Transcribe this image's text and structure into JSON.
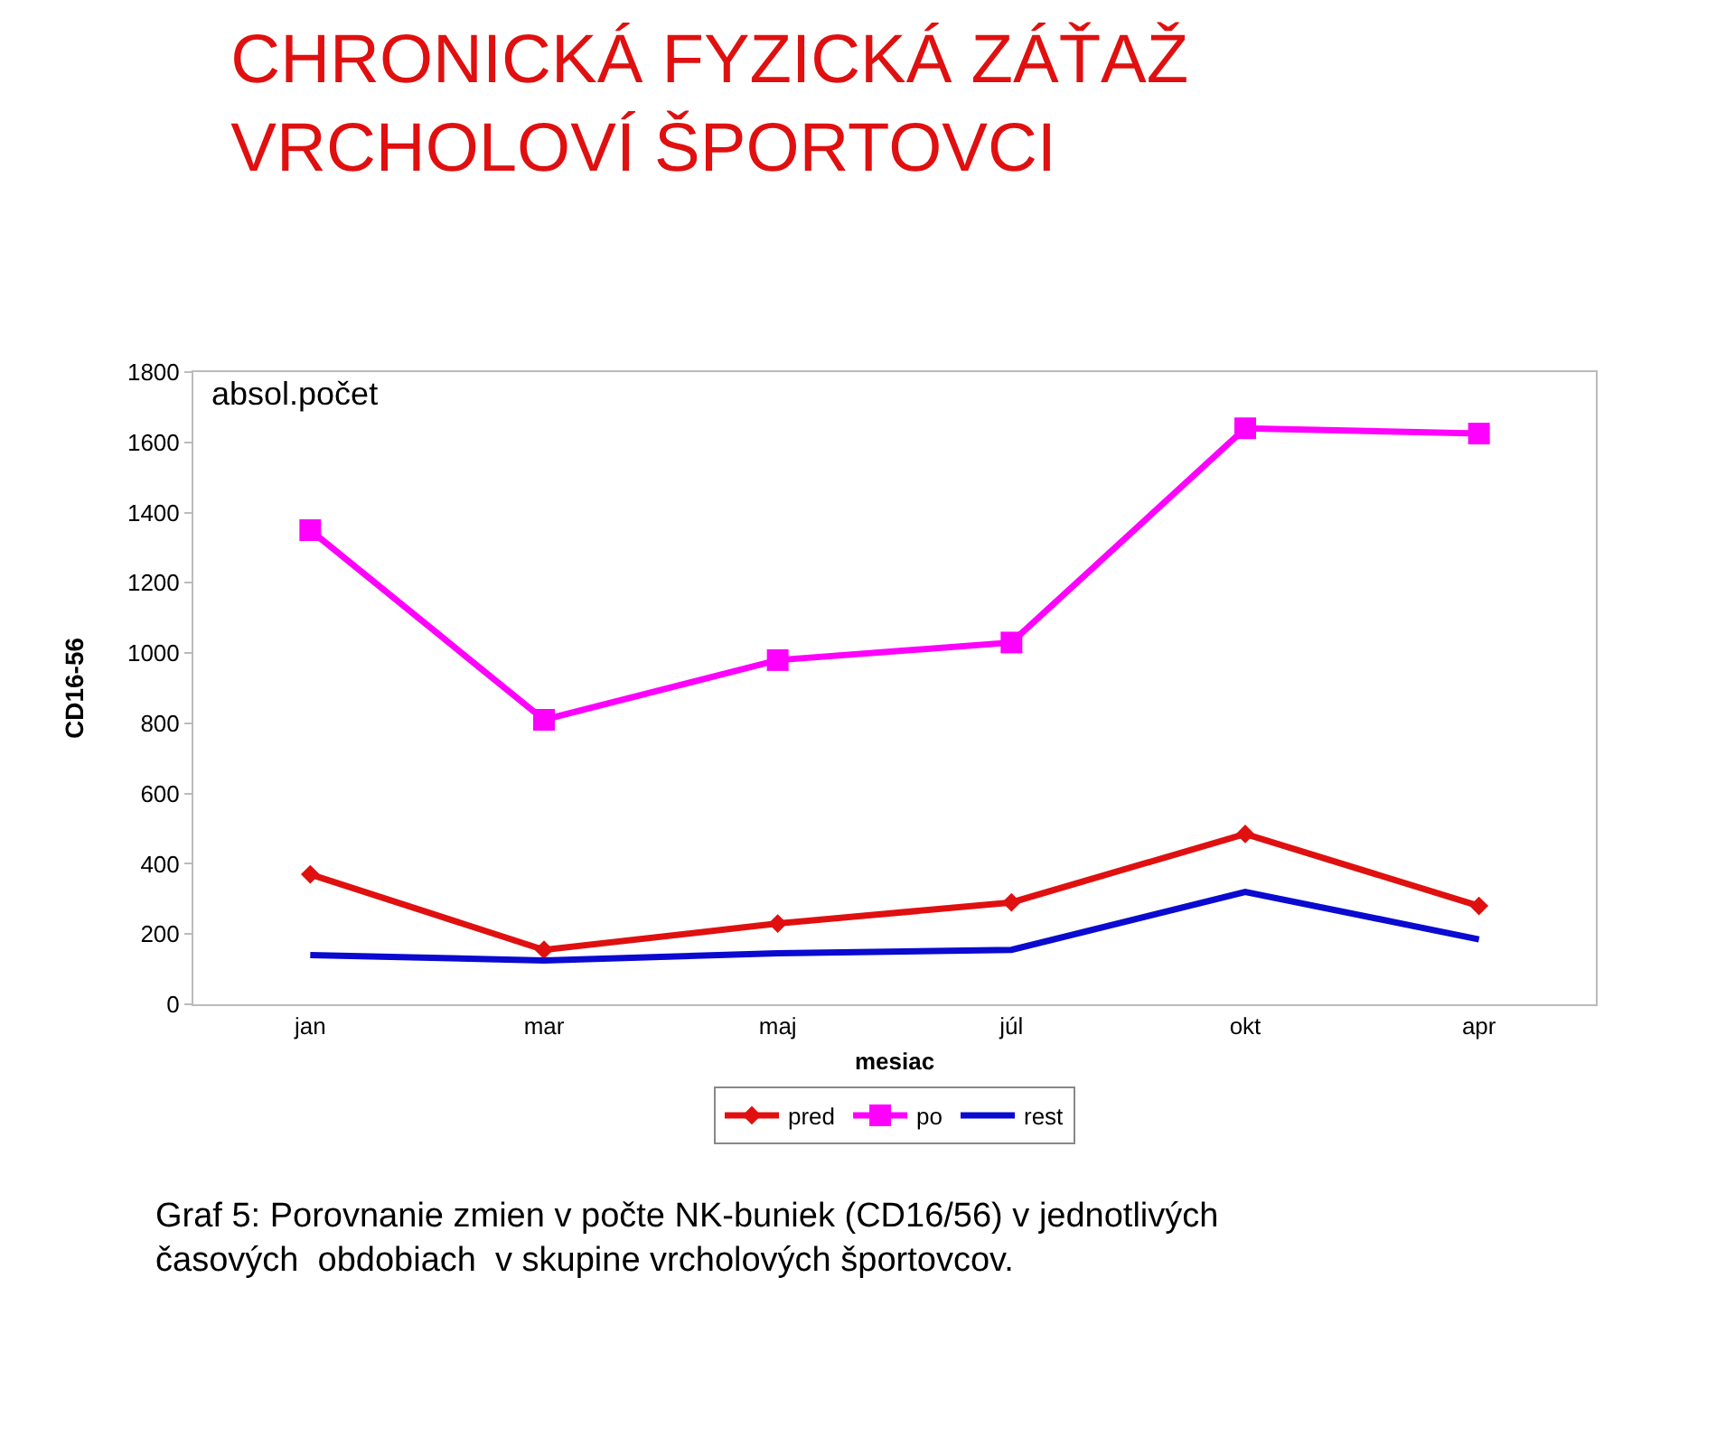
{
  "chart_data": {
    "type": "line",
    "title": "CHRONICKÁ FYZICKÁ ZÁŤAŽ\nVRCHOLOVÍ ŠPORTOVCI",
    "xlabel": "mesiac",
    "ylabel": "CD16-56",
    "categories": [
      "jan",
      "mar",
      "maj",
      "júl",
      "okt",
      "apr"
    ],
    "series": [
      {
        "name": "pred",
        "color": "#e01010",
        "marker": "diamond",
        "values": [
          370,
          155,
          230,
          290,
          485,
          280
        ]
      },
      {
        "name": "po",
        "color": "#ff00ff",
        "marker": "square",
        "values": [
          1350,
          810,
          980,
          1030,
          1640,
          1625
        ]
      },
      {
        "name": "rest",
        "color": "#0a0ad0",
        "marker": "none",
        "values": [
          140,
          125,
          145,
          155,
          320,
          185
        ]
      }
    ],
    "ylim": [
      0,
      1800
    ],
    "yticks": [
      0,
      200,
      400,
      600,
      800,
      1000,
      1200,
      1400,
      1600,
      1800
    ],
    "legend": "bottom",
    "line_style": "solid",
    "annotations": [
      "absol.počet",
      "Graf 5: Porovnanie zmien v počte NK-buniek (CD16/56) v jednotlivých\nčasových  obdobiach  v skupine vrcholových športovcov."
    ]
  }
}
